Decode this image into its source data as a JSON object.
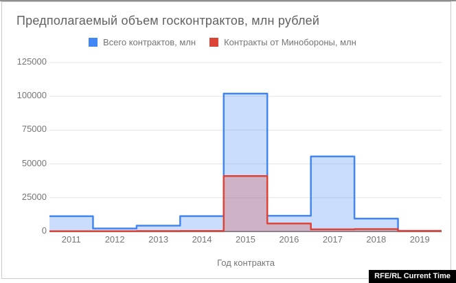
{
  "window": {
    "watermark": "RFE/RL Current Time"
  },
  "colors": {
    "accent_blue": "#4285f4",
    "accent_red": "#db4437",
    "gridline": "#e3e3e3",
    "axis_line": "#8b8b8b",
    "text_muted": "#757575",
    "title_text": "#616161",
    "watermark_bg": "#000000",
    "watermark_fg": "#ffffff"
  },
  "chart_data": {
    "type": "area",
    "stepped": true,
    "title": "Предполагаемый объем госконтрактов, млн рублей",
    "xlabel": "Год контракта",
    "ylabel": "",
    "categories": [
      "2011",
      "2012",
      "2013",
      "2014",
      "2015",
      "2016",
      "2017",
      "2018",
      "2019"
    ],
    "series": [
      {
        "name": "Всего контрактов, млн",
        "color": "#4285f4",
        "fill_opacity": 0.28,
        "values": [
          11300,
          2200,
          4300,
          11400,
          102000,
          11600,
          55500,
          9500,
          500
        ]
      },
      {
        "name": "Контракты от Минобороны, млн",
        "color": "#db4437",
        "fill_opacity": 0.28,
        "values": [
          200,
          200,
          300,
          400,
          41000,
          5900,
          1600,
          1800,
          400
        ]
      }
    ],
    "ylim": [
      0,
      125000
    ],
    "yticks": [
      0,
      25000,
      50000,
      75000,
      100000,
      125000
    ],
    "grid": true,
    "legend_position": "top"
  }
}
